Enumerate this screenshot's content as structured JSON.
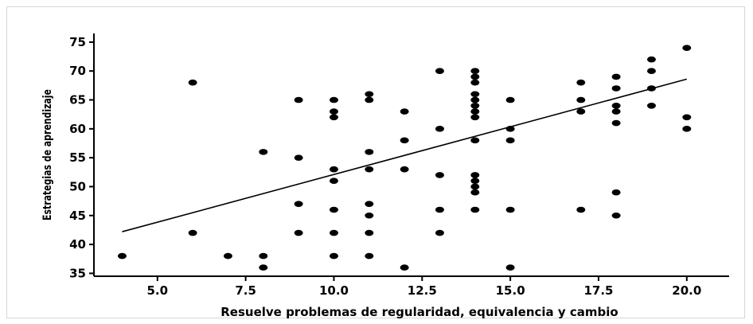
{
  "chart_data": {
    "type": "scatter",
    "title": "",
    "xlabel": "Resuelve problemas de regularidad, equivalencia y cambio",
    "ylabel": "Estrategias de aprendizaje",
    "xlim": [
      3.2,
      21.2
    ],
    "ylim": [
      34.5,
      76.5
    ],
    "xticks": [
      5.0,
      7.5,
      10.0,
      12.5,
      15.0,
      17.5,
      20.0
    ],
    "xtick_labels": [
      "5.0",
      "7.5",
      "10.0",
      "12.5",
      "15.0",
      "17.5",
      "20.0"
    ],
    "yticks": [
      35,
      40,
      45,
      50,
      55,
      60,
      65,
      70,
      75
    ],
    "ytick_labels": [
      "35",
      "40",
      "45",
      "50",
      "55",
      "60",
      "65",
      "70",
      "75"
    ],
    "grid": false,
    "point_color": "#000000",
    "fit_line": {
      "x": [
        4,
        20
      ],
      "y": [
        42.2,
        68.6
      ]
    },
    "points": [
      [
        4,
        38
      ],
      [
        6,
        68
      ],
      [
        6,
        42
      ],
      [
        7,
        38
      ],
      [
        8,
        56
      ],
      [
        8,
        38
      ],
      [
        8,
        36
      ],
      [
        9,
        65
      ],
      [
        9,
        55
      ],
      [
        9,
        47
      ],
      [
        9,
        42
      ],
      [
        10,
        65
      ],
      [
        10,
        63
      ],
      [
        10,
        62
      ],
      [
        10,
        53
      ],
      [
        10,
        51
      ],
      [
        10,
        46
      ],
      [
        10,
        42
      ],
      [
        10,
        38
      ],
      [
        11,
        66
      ],
      [
        11,
        65
      ],
      [
        11,
        56
      ],
      [
        11,
        53
      ],
      [
        11,
        47
      ],
      [
        11,
        45
      ],
      [
        11,
        42
      ],
      [
        11,
        38
      ],
      [
        12,
        63
      ],
      [
        12,
        58
      ],
      [
        12,
        53
      ],
      [
        12,
        36
      ],
      [
        13,
        70
      ],
      [
        13,
        60
      ],
      [
        13,
        52
      ],
      [
        13,
        46
      ],
      [
        13,
        42
      ],
      [
        14,
        70
      ],
      [
        14,
        69
      ],
      [
        14,
        68
      ],
      [
        14,
        66
      ],
      [
        14,
        65
      ],
      [
        14,
        64
      ],
      [
        14,
        63
      ],
      [
        14,
        62
      ],
      [
        14,
        58
      ],
      [
        14,
        52
      ],
      [
        14,
        51
      ],
      [
        14,
        50
      ],
      [
        14,
        49
      ],
      [
        14,
        46
      ],
      [
        15,
        65
      ],
      [
        15,
        60
      ],
      [
        15,
        58
      ],
      [
        15,
        46
      ],
      [
        15,
        36
      ],
      [
        17,
        68
      ],
      [
        17,
        65
      ],
      [
        17,
        63
      ],
      [
        17,
        46
      ],
      [
        18,
        69
      ],
      [
        18,
        67
      ],
      [
        18,
        64
      ],
      [
        18,
        63
      ],
      [
        18,
        61
      ],
      [
        18,
        49
      ],
      [
        18,
        45
      ],
      [
        19,
        72
      ],
      [
        19,
        70
      ],
      [
        19,
        67
      ],
      [
        19,
        64
      ],
      [
        20,
        74
      ],
      [
        20,
        62
      ],
      [
        20,
        60
      ]
    ]
  }
}
